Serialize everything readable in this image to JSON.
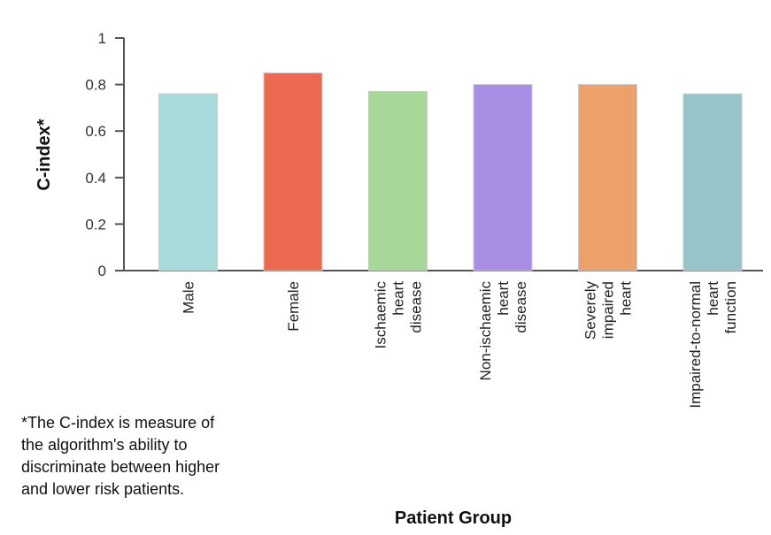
{
  "chart_data": {
    "type": "bar",
    "categories": [
      [
        "Male"
      ],
      [
        "Female"
      ],
      [
        "Ischaemic",
        "heart",
        "disease"
      ],
      [
        "Non-ischaemic",
        "heart",
        "disease"
      ],
      [
        "Severely",
        "impaired",
        "heart"
      ],
      [
        "Impaired-to-normal",
        "heart",
        "function"
      ]
    ],
    "values": [
      0.76,
      0.85,
      0.77,
      0.8,
      0.8,
      0.76
    ],
    "colors": [
      "#a8dcdc",
      "#ec6a4f",
      "#a8d79a",
      "#a98ee6",
      "#eda06a",
      "#97c4c8"
    ],
    "ylabel": "C-index*",
    "xlabel": "Patient Group",
    "ylim": [
      0,
      1
    ],
    "yticks": [
      "0",
      "0.2",
      "0.4",
      "0.6",
      "0.8",
      "1"
    ],
    "grid": false
  },
  "footnote": [
    "*The C-index is measure of",
    "the algorithm's ability to",
    "discriminate between higher",
    "and lower risk patients."
  ]
}
